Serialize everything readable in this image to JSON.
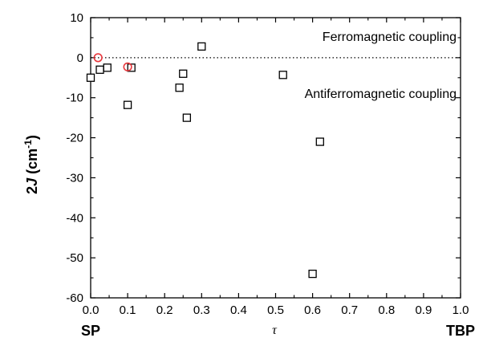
{
  "chart_data": {
    "type": "scatter",
    "title": "",
    "ylabel": {
      "prefix": "2",
      "italic": "J",
      "rest": " (cm",
      "sup": "-1",
      "close": ")"
    },
    "xlabel": "τ",
    "x_end_labels": {
      "left": "SP",
      "right": "TBP"
    },
    "xlim": [
      0.0,
      1.0
    ],
    "ylim": [
      -60,
      10
    ],
    "xticks": [
      0.0,
      0.1,
      0.2,
      0.3,
      0.4,
      0.5,
      0.6,
      0.7,
      0.8,
      0.9,
      1.0
    ],
    "xtick_labels": [
      "0.0",
      "0.1",
      "0.2",
      "0.3",
      "0.4",
      "0.5",
      "0.6",
      "0.7",
      "0.8",
      "0.9",
      "1.0"
    ],
    "yticks": [
      10,
      0,
      -10,
      -20,
      -30,
      -40,
      -50,
      -60
    ],
    "ytick_labels": [
      "10",
      "0",
      "-10",
      "-20",
      "-30",
      "-40",
      "-50",
      "-60"
    ],
    "grid": false,
    "reference_line": {
      "y": 0,
      "style": "dotted"
    },
    "annotations": {
      "upper": "Ferromagnetic coupling",
      "lower": "Antiferromagnetic coupling"
    },
    "series": [
      {
        "marker": "square",
        "color": "#000000",
        "points": [
          {
            "x": 0.0,
            "y": -5.0
          },
          {
            "x": 0.025,
            "y": -3.0
          },
          {
            "x": 0.045,
            "y": -2.5
          },
          {
            "x": 0.1,
            "y": -11.8
          },
          {
            "x": 0.11,
            "y": -2.5
          },
          {
            "x": 0.24,
            "y": -7.5
          },
          {
            "x": 0.25,
            "y": -4.0
          },
          {
            "x": 0.26,
            "y": -15.0
          },
          {
            "x": 0.3,
            "y": 2.8
          },
          {
            "x": 0.52,
            "y": -4.3
          },
          {
            "x": 0.6,
            "y": -54.0
          },
          {
            "x": 0.62,
            "y": -21.0
          }
        ]
      },
      {
        "marker": "circle",
        "color": "#e8383d",
        "points": [
          {
            "x": 0.02,
            "y": 0.0
          },
          {
            "x": 0.1,
            "y": -2.3
          }
        ]
      }
    ]
  }
}
